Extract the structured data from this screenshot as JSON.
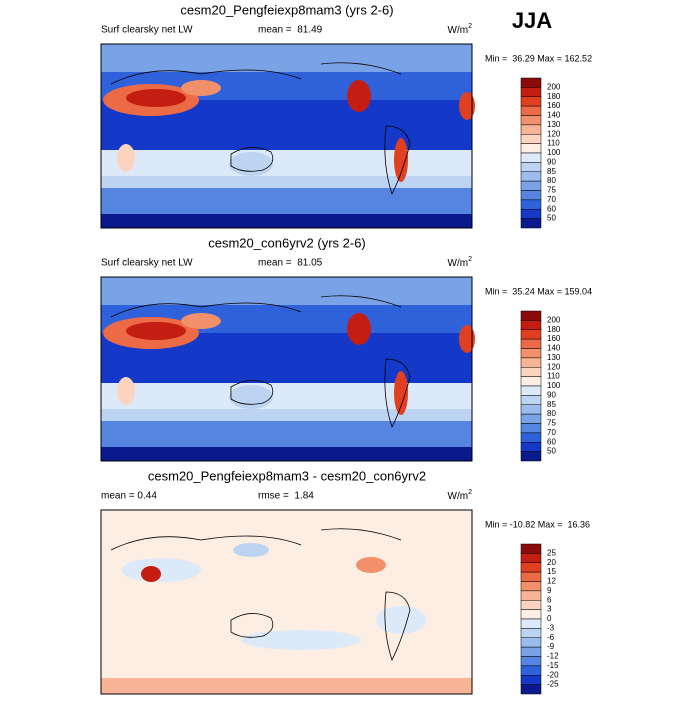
{
  "header": {
    "season": "JJA"
  },
  "panels": [
    {
      "title": "cesm20_Pengfeiexp8mam3 (yrs 2-6)",
      "left_label": "Surf clearsky net LW",
      "center_label": "mean =  81.49",
      "units": {
        "base": "W/m",
        "sup": "2"
      },
      "minmax": "Min =  36.29 Max = 162.52",
      "colorbar": {
        "labels": [
          "200",
          "180",
          "160",
          "140",
          "130",
          "120",
          "110",
          "100",
          "90",
          "85",
          "80",
          "75",
          "70",
          "60",
          "50"
        ],
        "colors": [
          "#8b0a0a",
          "#c41e12",
          "#e0401f",
          "#ec6a46",
          "#f2906c",
          "#f7b497",
          "#fbd3be",
          "#fdeee4",
          "#dce9f8",
          "#bcd4f2",
          "#9bbcec",
          "#7aa2e6",
          "#5585e0",
          "#2f62da",
          "#1438c8",
          "#0a1a8c"
        ]
      }
    },
    {
      "title": "cesm20_con6yrv2 (yrs 2-6)",
      "left_label": "Surf clearsky net LW",
      "center_label": "mean =  81.05",
      "units": {
        "base": "W/m",
        "sup": "2"
      },
      "minmax": "Min =  35.24 Max = 159.04",
      "colorbar": {
        "labels": [
          "200",
          "180",
          "160",
          "140",
          "130",
          "120",
          "110",
          "100",
          "90",
          "85",
          "80",
          "75",
          "70",
          "60",
          "50"
        ],
        "colors": [
          "#8b0a0a",
          "#c41e12",
          "#e0401f",
          "#ec6a46",
          "#f2906c",
          "#f7b497",
          "#fbd3be",
          "#fdeee4",
          "#dce9f8",
          "#bcd4f2",
          "#9bbcec",
          "#7aa2e6",
          "#5585e0",
          "#2f62da",
          "#1438c8",
          "#0a1a8c"
        ]
      }
    },
    {
      "title": "cesm20_Pengfeiexp8mam3 - cesm20_con6yrv2",
      "left_label": "mean =  0.44",
      "center_label": "rmse =  1.84",
      "units": {
        "base": "W/m",
        "sup": "2"
      },
      "minmax": "Min = -10.82 Max =  16.36",
      "colorbar": {
        "labels": [
          "25",
          "20",
          "15",
          "12",
          "9",
          "6",
          "3",
          "0",
          "-3",
          "-6",
          "-9",
          "-12",
          "-15",
          "-20",
          "-25"
        ],
        "colors": [
          "#8b0a0a",
          "#c41e12",
          "#e0401f",
          "#ec6a46",
          "#f2906c",
          "#f7b497",
          "#fbd3be",
          "#fdeee4",
          "#dce9f8",
          "#bcd4f2",
          "#9bbcec",
          "#7aa2e6",
          "#5585e0",
          "#2f62da",
          "#1438c8",
          "#0a1a8c"
        ]
      }
    }
  ]
}
